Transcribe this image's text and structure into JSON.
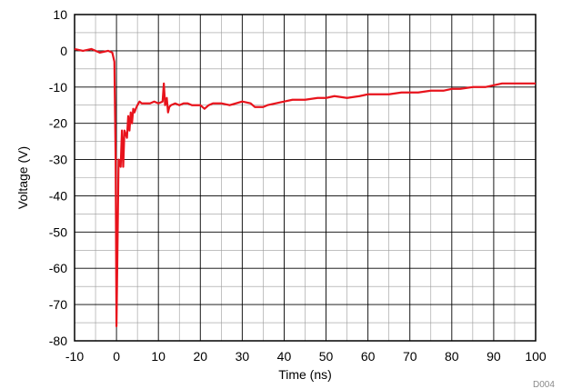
{
  "chart_data": {
    "type": "line",
    "title": "",
    "xlabel": "Time (ns)",
    "ylabel": "Voltage (V)",
    "xlim": [
      -10,
      100
    ],
    "ylim": [
      -80,
      10
    ],
    "x_ticks": [
      -10,
      0,
      10,
      20,
      30,
      40,
      50,
      60,
      70,
      80,
      90,
      100
    ],
    "y_ticks": [
      10,
      0,
      -10,
      -20,
      -30,
      -40,
      -50,
      -60,
      -70,
      -80
    ],
    "x_minor_step": 5,
    "y_minor_step": 5,
    "grid": true,
    "legend": "none",
    "figure_id": "D004",
    "series": [
      {
        "color": "#e8131c",
        "x": [
          -10,
          -8,
          -6,
          -4,
          -2,
          -1,
          -0.5,
          -0.2,
          0,
          0.2,
          0.5,
          1,
          1.3,
          1.6,
          1.9,
          2.2,
          2.5,
          2.8,
          3.1,
          3.4,
          3.7,
          4.0,
          4.3,
          4.6,
          5,
          5.5,
          6,
          7,
          8,
          9,
          10,
          11,
          11.3,
          11.6,
          12,
          12.3,
          12.6,
          13,
          14,
          15,
          16,
          17,
          18,
          20,
          21,
          22,
          23,
          25,
          27,
          30,
          32,
          33,
          35,
          36,
          38,
          40,
          42,
          45,
          48,
          50,
          52,
          55,
          58,
          60,
          62,
          65,
          68,
          70,
          72,
          75,
          78,
          80,
          82,
          85,
          88,
          90,
          92,
          95,
          98,
          100
        ],
        "y": [
          0.5,
          0,
          0.5,
          -0.5,
          0,
          -0.5,
          -3,
          -30,
          -76,
          -58,
          -30,
          -32,
          -22,
          -32,
          -22,
          -23,
          -24,
          -18,
          -22,
          -17,
          -20,
          -16,
          -17,
          -16,
          -15,
          -14,
          -14.5,
          -14.5,
          -14.5,
          -14,
          -14.5,
          -14,
          -9,
          -15,
          -13,
          -17,
          -15.5,
          -15,
          -14.5,
          -15,
          -14.5,
          -14.5,
          -15,
          -15,
          -16,
          -15,
          -14.5,
          -14.5,
          -15,
          -14,
          -14.5,
          -15.5,
          -15.5,
          -15,
          -14.5,
          -14,
          -13.5,
          -13.5,
          -13,
          -13,
          -12.5,
          -13,
          -12.5,
          -12,
          -12,
          -12,
          -11.5,
          -11.5,
          -11.5,
          -11,
          -11,
          -10.5,
          -10.5,
          -10,
          -10,
          -9.5,
          -9,
          -9,
          -9,
          -9
        ]
      }
    ]
  }
}
